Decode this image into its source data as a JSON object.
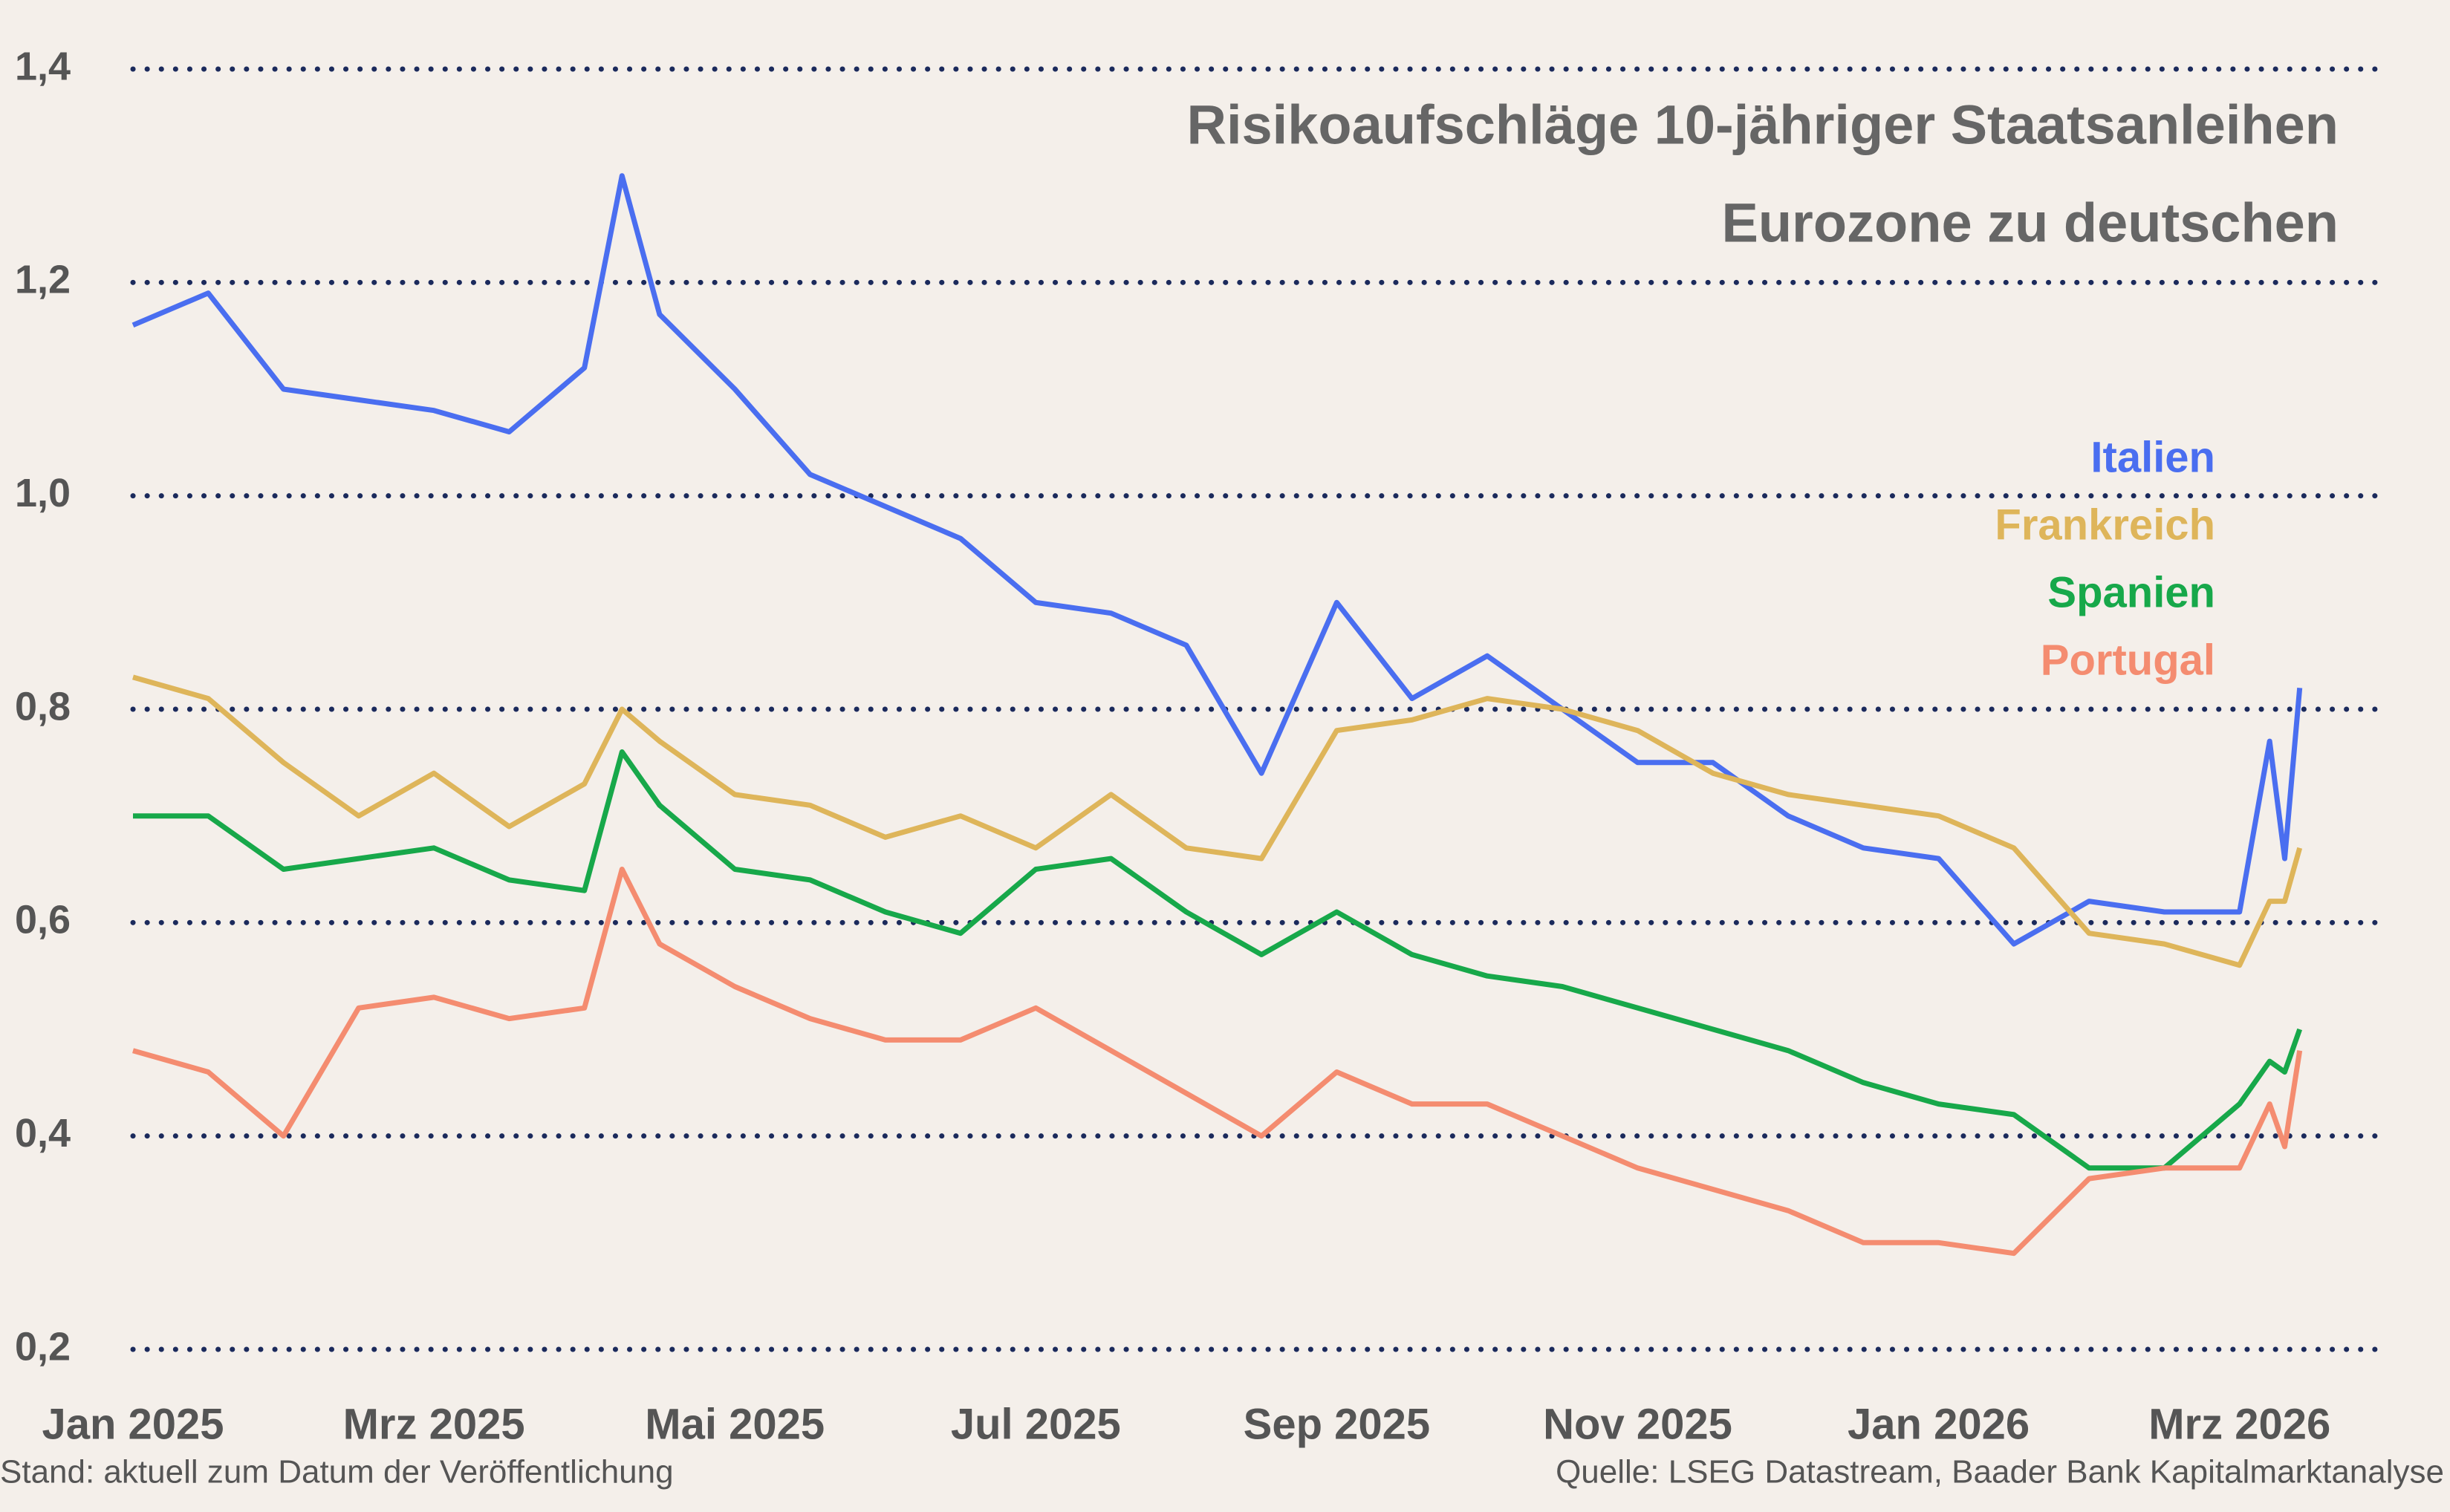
{
  "chart_data": {
    "type": "line",
    "title": "Risikoaufschläge 10-jähriger Staatsanleihen",
    "subtitle": "Eurozone zu deutschen",
    "footnote": "Stand: aktuell zum Datum der Veröffentlichung",
    "source": "Quelle: LSEG Datastream, Baader Bank Kapitalmarktanalyse",
    "x": [
      0,
      0.5,
      1,
      1.5,
      2,
      2.5,
      3,
      3.25,
      3.5,
      4,
      4.5,
      5,
      5.5,
      6,
      6.5,
      7,
      7.5,
      8,
      8.5,
      9,
      9.5,
      10,
      10.5,
      11,
      11.5,
      12,
      12.5,
      13,
      13.5,
      14,
      14.2,
      14.3,
      14.4
    ],
    "series": [
      {
        "name": "Italien",
        "color": "#4a6ef0",
        "values": [
          1.16,
          1.19,
          1.1,
          1.09,
          1.08,
          1.06,
          1.12,
          1.3,
          1.17,
          1.1,
          1.02,
          0.99,
          0.96,
          0.9,
          0.89,
          0.86,
          0.74,
          0.9,
          0.81,
          0.85,
          0.8,
          0.75,
          0.75,
          0.7,
          0.67,
          0.66,
          0.58,
          0.62,
          0.61,
          0.61,
          0.77,
          0.66,
          0.82
        ]
      },
      {
        "name": "Frankreich",
        "color": "#deb55a",
        "values": [
          0.83,
          0.81,
          0.75,
          0.7,
          0.74,
          0.69,
          0.73,
          0.8,
          0.77,
          0.72,
          0.71,
          0.68,
          0.7,
          0.67,
          0.72,
          0.67,
          0.66,
          0.78,
          0.79,
          0.81,
          0.8,
          0.78,
          0.74,
          0.72,
          0.71,
          0.7,
          0.67,
          0.59,
          0.58,
          0.56,
          0.62,
          0.62,
          0.67
        ]
      },
      {
        "name": "Spanien",
        "color": "#17a84a",
        "values": [
          0.7,
          0.7,
          0.65,
          0.66,
          0.67,
          0.64,
          0.63,
          0.76,
          0.71,
          0.65,
          0.64,
          0.61,
          0.59,
          0.65,
          0.66,
          0.61,
          0.57,
          0.61,
          0.57,
          0.55,
          0.54,
          0.52,
          0.5,
          0.48,
          0.45,
          0.43,
          0.42,
          0.37,
          0.37,
          0.43,
          0.47,
          0.46,
          0.5
        ]
      },
      {
        "name": "Portugal",
        "color": "#f48c70",
        "values": [
          0.48,
          0.46,
          0.4,
          0.52,
          0.53,
          0.51,
          0.52,
          0.65,
          0.58,
          0.54,
          0.51,
          0.49,
          0.49,
          0.52,
          0.48,
          0.44,
          0.4,
          0.46,
          0.43,
          0.43,
          0.4,
          0.37,
          0.35,
          0.33,
          0.3,
          0.3,
          0.29,
          0.36,
          0.37,
          0.37,
          0.43,
          0.39,
          0.48
        ]
      }
    ],
    "xlim": [
      0,
      14.9
    ],
    "xticks": [
      {
        "value": 0,
        "label": "Jan 2025"
      },
      {
        "value": 2,
        "label": "Mrz 2025"
      },
      {
        "value": 4,
        "label": "Mai 2025"
      },
      {
        "value": 6,
        "label": "Jul 2025"
      },
      {
        "value": 8,
        "label": "Sep 2025"
      },
      {
        "value": 10,
        "label": "Nov 2025"
      },
      {
        "value": 12,
        "label": "Jan 2026"
      },
      {
        "value": 14,
        "label": "Mrz 2026"
      }
    ],
    "ylim": [
      0.2,
      1.4
    ],
    "yticks": [
      {
        "value": 0.2,
        "label": "0,2"
      },
      {
        "value": 0.4,
        "label": "0,4"
      },
      {
        "value": 0.6,
        "label": "0,6"
      },
      {
        "value": 0.8,
        "label": "0,8"
      },
      {
        "value": 1.0,
        "label": "1,0"
      },
      {
        "value": 1.2,
        "label": "1,2"
      },
      {
        "value": 1.4,
        "label": "1,4"
      }
    ],
    "grid": true
  }
}
